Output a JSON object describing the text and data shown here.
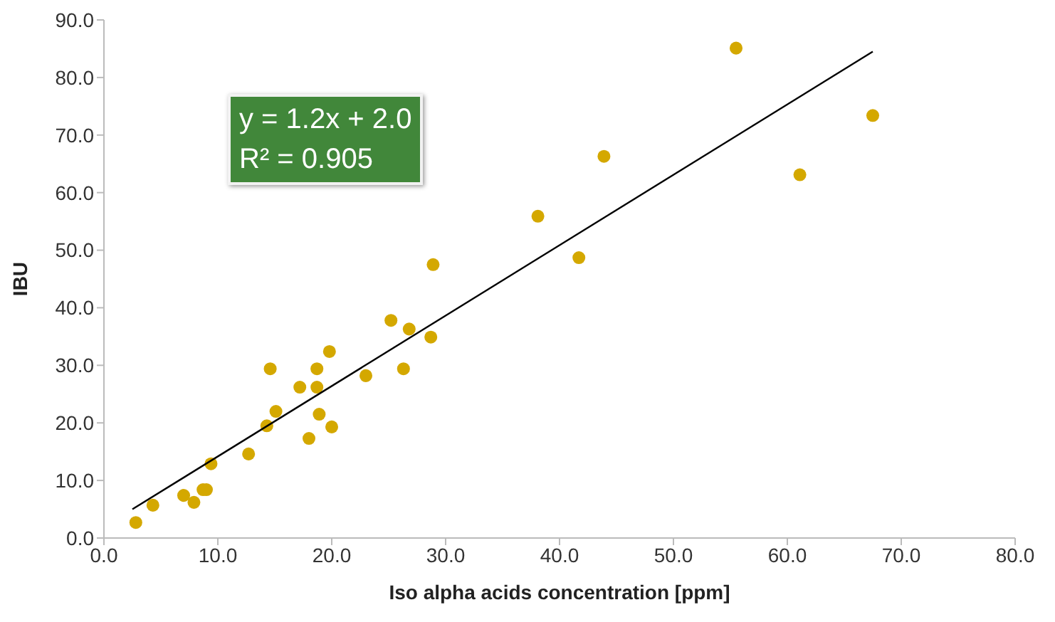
{
  "chart_data": {
    "type": "scatter",
    "xlabel": "Iso alpha acids concentration [ppm]",
    "ylabel": "IBU",
    "xlim": [
      0,
      80
    ],
    "ylim": [
      0,
      90
    ],
    "xticks": [
      {
        "value": 0,
        "label": "0.0"
      },
      {
        "value": 10,
        "label": "10.0"
      },
      {
        "value": 20,
        "label": "20.0"
      },
      {
        "value": 30,
        "label": "30.0"
      },
      {
        "value": 40,
        "label": "40.0"
      },
      {
        "value": 50,
        "label": "50.0"
      },
      {
        "value": 60,
        "label": "60.0"
      },
      {
        "value": 70,
        "label": "70.0"
      },
      {
        "value": 80,
        "label": "80.0"
      }
    ],
    "yticks": [
      {
        "value": 0,
        "label": "0.0"
      },
      {
        "value": 10,
        "label": "10.0"
      },
      {
        "value": 20,
        "label": "20.0"
      },
      {
        "value": 30,
        "label": "30.0"
      },
      {
        "value": 40,
        "label": "40.0"
      },
      {
        "value": 50,
        "label": "50.0"
      },
      {
        "value": 60,
        "label": "60.0"
      },
      {
        "value": 70,
        "label": "70.0"
      },
      {
        "value": 80,
        "label": "80.0"
      },
      {
        "value": 90,
        "label": "90.0"
      }
    ],
    "annotations": [
      "y = 1.2x + 2.0",
      "R² = 0.905"
    ],
    "series": [
      {
        "marker": "circle",
        "color": "#d4a800",
        "x": [
          2.8,
          4.3,
          7.0,
          7.9,
          8.7,
          9.0,
          9.4,
          12.7,
          14.3,
          15.1,
          14.6,
          17.2,
          18.0,
          18.7,
          18.7,
          18.9,
          19.8,
          20.0,
          23.0,
          25.2,
          26.3,
          26.8,
          28.7,
          28.9,
          38.1,
          41.7,
          43.9,
          55.5,
          61.1,
          67.5
        ],
        "values": [
          2.7,
          5.7,
          7.4,
          6.2,
          8.4,
          8.4,
          12.9,
          14.6,
          19.5,
          22.0,
          29.4,
          26.2,
          17.3,
          29.4,
          26.2,
          21.5,
          32.4,
          19.3,
          28.2,
          37.8,
          29.4,
          36.3,
          34.9,
          47.5,
          55.9,
          48.7,
          66.3,
          85.1,
          63.1,
          73.4
        ]
      },
      {
        "type": "line",
        "color": "#000000",
        "x": [
          2.5,
          67.5
        ],
        "values": [
          5.0,
          84.5
        ]
      }
    ]
  }
}
